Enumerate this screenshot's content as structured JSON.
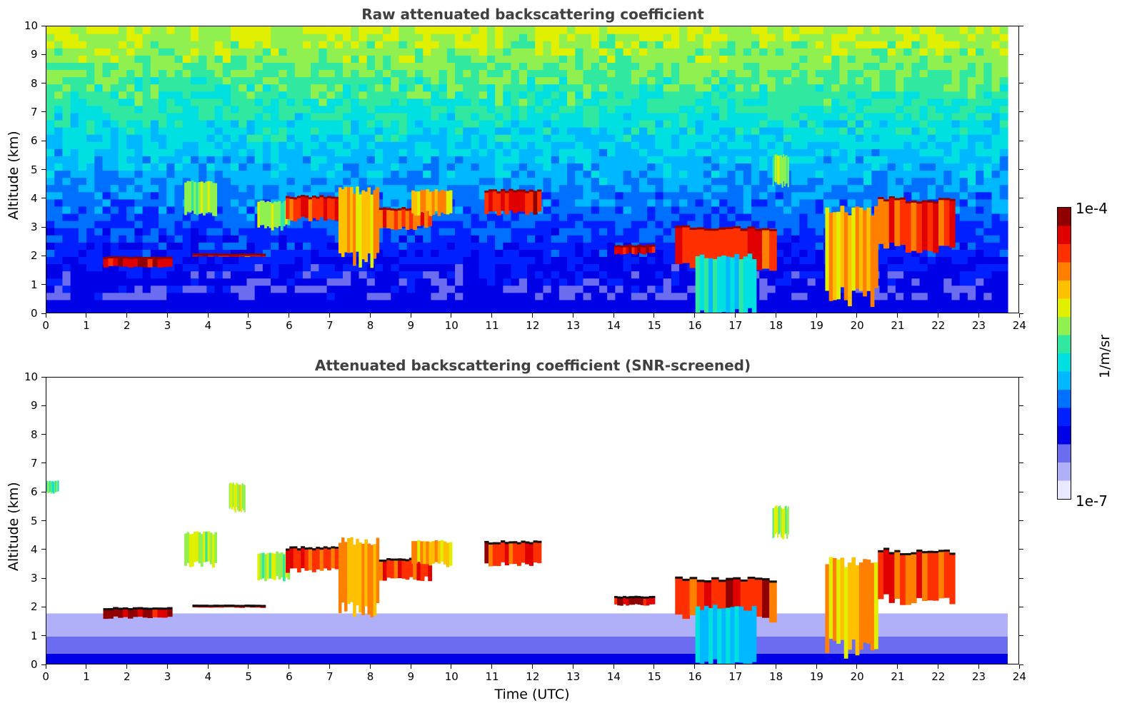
{
  "chart_data": [
    {
      "type": "heatmap",
      "title": "Raw attenuated backscattering coefficient",
      "xlabel": "",
      "ylabel": "Altitude (km)",
      "xlim": [
        0,
        24
      ],
      "ylim": [
        0,
        10
      ],
      "x_ticks": [
        "0",
        "1",
        "2",
        "3",
        "4",
        "5",
        "6",
        "7",
        "8",
        "9",
        "10",
        "11",
        "12",
        "13",
        "14",
        "15",
        "16",
        "17",
        "18",
        "19",
        "20",
        "21",
        "22",
        "23",
        "24"
      ],
      "y_ticks": [
        "0",
        "1",
        "2",
        "3",
        "4",
        "5",
        "6",
        "7",
        "8",
        "9",
        "10"
      ],
      "grid": false,
      "features": [
        {
          "x": [
            1.4,
            3.1
          ],
          "y": [
            1.65,
            2.0
          ],
          "level": 0.95
        },
        {
          "x": [
            3.6,
            5.4
          ],
          "y": [
            2.0,
            2.1
          ],
          "level": 0.9
        },
        {
          "x": [
            3.4,
            4.2
          ],
          "y": [
            3.5,
            4.6
          ],
          "level": 0.6
        },
        {
          "x": [
            5.2,
            6.0
          ],
          "y": [
            3.0,
            3.9
          ],
          "level": 0.6
        },
        {
          "x": [
            5.9,
            7.2
          ],
          "y": [
            3.3,
            4.1
          ],
          "level": 0.85
        },
        {
          "x": [
            7.2,
            8.2
          ],
          "y": [
            1.9,
            4.3
          ],
          "level": 0.75
        },
        {
          "x": [
            8.2,
            9.5
          ],
          "y": [
            3.0,
            3.7
          ],
          "level": 0.85
        },
        {
          "x": [
            9.0,
            10.0
          ],
          "y": [
            3.5,
            4.3
          ],
          "level": 0.75
        },
        {
          "x": [
            10.8,
            12.2
          ],
          "y": [
            3.5,
            4.3
          ],
          "level": 0.9
        },
        {
          "x": [
            14.0,
            15.0
          ],
          "y": [
            2.1,
            2.4
          ],
          "level": 0.95
        },
        {
          "x": [
            15.5,
            18.0
          ],
          "y": [
            1.6,
            3.0
          ],
          "level": 0.9
        },
        {
          "x": [
            16.0,
            17.5
          ],
          "y": [
            0.0,
            2.0
          ],
          "level": 0.45
        },
        {
          "x": [
            19.2,
            20.5
          ],
          "y": [
            0.6,
            3.6
          ],
          "level": 0.75
        },
        {
          "x": [
            20.5,
            22.4
          ],
          "y": [
            2.3,
            4.0
          ],
          "level": 0.85
        },
        {
          "x": [
            17.9,
            18.3
          ],
          "y": [
            4.5,
            5.5
          ],
          "level": 0.6
        }
      ]
    },
    {
      "type": "heatmap",
      "title": "Attenuated backscattering coefficient (SNR-screened)",
      "xlabel": "Time (UTC)",
      "ylabel": "Altitude (km)",
      "xlim": [
        0,
        24
      ],
      "ylim": [
        0,
        10
      ],
      "x_ticks": [
        "0",
        "1",
        "2",
        "3",
        "4",
        "5",
        "6",
        "7",
        "8",
        "9",
        "10",
        "11",
        "12",
        "13",
        "14",
        "15",
        "16",
        "17",
        "18",
        "19",
        "20",
        "21",
        "22",
        "23",
        "24"
      ],
      "y_ticks": [
        "0",
        "1",
        "2",
        "3",
        "4",
        "5",
        "6",
        "7",
        "8",
        "9",
        "10"
      ],
      "grid": false,
      "features": [
        {
          "x": [
            1.4,
            3.1
          ],
          "y": [
            1.65,
            2.0
          ],
          "level": 0.95
        },
        {
          "x": [
            3.6,
            5.4
          ],
          "y": [
            2.0,
            2.1
          ],
          "level": 0.9
        },
        {
          "x": [
            3.4,
            4.2
          ],
          "y": [
            3.5,
            4.6
          ],
          "level": 0.6
        },
        {
          "x": [
            5.2,
            6.0
          ],
          "y": [
            3.0,
            3.9
          ],
          "level": 0.6
        },
        {
          "x": [
            5.9,
            7.2
          ],
          "y": [
            3.3,
            4.1
          ],
          "level": 0.85
        },
        {
          "x": [
            7.2,
            8.2
          ],
          "y": [
            1.9,
            4.3
          ],
          "level": 0.75
        },
        {
          "x": [
            8.2,
            9.5
          ],
          "y": [
            3.0,
            3.7
          ],
          "level": 0.85
        },
        {
          "x": [
            9.0,
            10.0
          ],
          "y": [
            3.5,
            4.3
          ],
          "level": 0.75
        },
        {
          "x": [
            10.8,
            12.2
          ],
          "y": [
            3.5,
            4.3
          ],
          "level": 0.9
        },
        {
          "x": [
            14.0,
            15.0
          ],
          "y": [
            2.1,
            2.4
          ],
          "level": 0.95
        },
        {
          "x": [
            15.5,
            18.0
          ],
          "y": [
            1.6,
            3.0
          ],
          "level": 0.9
        },
        {
          "x": [
            16.0,
            17.5
          ],
          "y": [
            0.0,
            2.0
          ],
          "level": 0.45
        },
        {
          "x": [
            19.2,
            20.5
          ],
          "y": [
            0.6,
            3.6
          ],
          "level": 0.75
        },
        {
          "x": [
            20.5,
            22.4
          ],
          "y": [
            2.3,
            4.0
          ],
          "level": 0.85
        },
        {
          "x": [
            17.9,
            18.3
          ],
          "y": [
            4.5,
            5.5
          ],
          "level": 0.6
        },
        {
          "x": [
            4.5,
            4.9
          ],
          "y": [
            5.4,
            6.3
          ],
          "level": 0.65
        },
        {
          "x": [
            0.0,
            0.3
          ],
          "y": [
            6.0,
            6.4
          ],
          "level": 0.55
        }
      ]
    }
  ],
  "colorbar": {
    "max_label": "1e-4",
    "min_label": "1e-7",
    "unit": "1/m/sr",
    "colors": [
      "#e8e8ff",
      "#b0b0f8",
      "#6c6cf0",
      "#0000e6",
      "#0020ff",
      "#0070ff",
      "#00b8ff",
      "#00e0e0",
      "#30e8a0",
      "#90f050",
      "#e0f000",
      "#ffc000",
      "#ff8000",
      "#ff3000",
      "#e00000",
      "#900000"
    ]
  }
}
